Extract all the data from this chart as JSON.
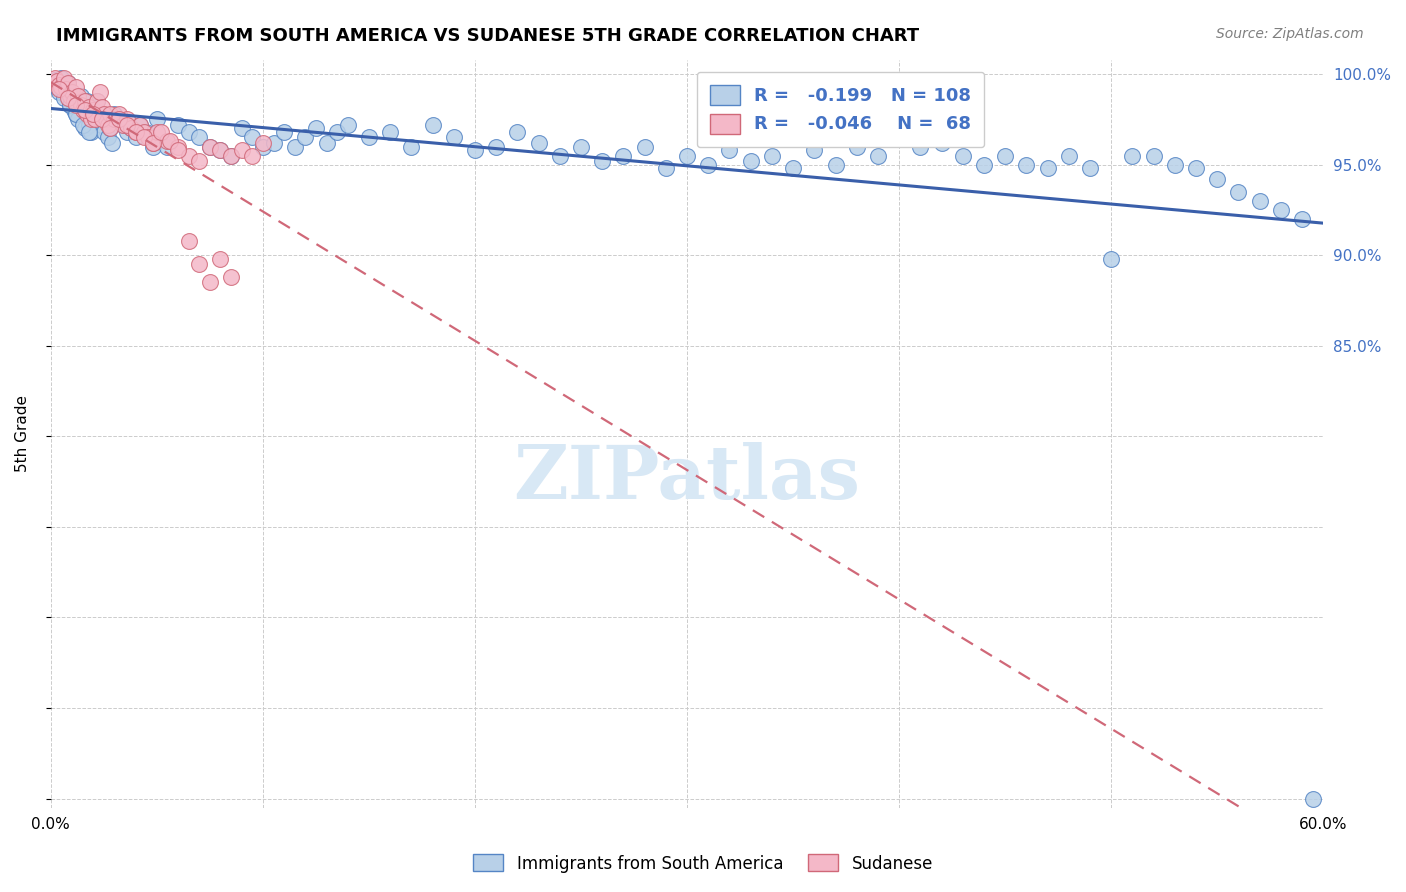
{
  "title": "IMMIGRANTS FROM SOUTH AMERICA VS SUDANESE 5TH GRADE CORRELATION CHART",
  "source": "Source: ZipAtlas.com",
  "ylabel": "5th Grade",
  "legend_R_blue": "-0.199",
  "legend_N_blue": "108",
  "legend_R_pink": "-0.046",
  "legend_N_pink": "68",
  "xlim": [
    0.0,
    0.6
  ],
  "ylim": [
    0.595,
    1.008
  ],
  "blue_scatter_x": [
    0.002,
    0.003,
    0.004,
    0.005,
    0.006,
    0.007,
    0.008,
    0.009,
    0.01,
    0.011,
    0.012,
    0.013,
    0.014,
    0.015,
    0.016,
    0.017,
    0.018,
    0.019,
    0.02,
    0.021,
    0.022,
    0.023,
    0.024,
    0.025,
    0.026,
    0.027,
    0.028,
    0.029,
    0.03,
    0.032,
    0.034,
    0.036,
    0.038,
    0.04,
    0.042,
    0.045,
    0.048,
    0.05,
    0.055,
    0.06,
    0.065,
    0.07,
    0.075,
    0.08,
    0.085,
    0.09,
    0.095,
    0.1,
    0.105,
    0.11,
    0.115,
    0.12,
    0.125,
    0.13,
    0.135,
    0.14,
    0.15,
    0.16,
    0.17,
    0.18,
    0.19,
    0.2,
    0.21,
    0.22,
    0.23,
    0.24,
    0.25,
    0.26,
    0.27,
    0.28,
    0.29,
    0.3,
    0.31,
    0.32,
    0.33,
    0.34,
    0.35,
    0.36,
    0.37,
    0.38,
    0.39,
    0.4,
    0.41,
    0.42,
    0.43,
    0.44,
    0.45,
    0.46,
    0.47,
    0.48,
    0.49,
    0.5,
    0.51,
    0.52,
    0.53,
    0.54,
    0.55,
    0.56,
    0.57,
    0.58,
    0.59,
    0.595,
    0.003,
    0.006,
    0.009,
    0.012,
    0.015,
    0.018
  ],
  "blue_scatter_y": [
    0.997,
    0.993,
    0.99,
    0.998,
    0.992,
    0.988,
    0.995,
    0.983,
    0.985,
    0.98,
    0.978,
    0.975,
    0.988,
    0.982,
    0.97,
    0.985,
    0.972,
    0.968,
    0.98,
    0.975,
    0.985,
    0.978,
    0.972,
    0.968,
    0.975,
    0.965,
    0.97,
    0.962,
    0.978,
    0.975,
    0.972,
    0.968,
    0.97,
    0.965,
    0.972,
    0.968,
    0.96,
    0.975,
    0.96,
    0.972,
    0.968,
    0.965,
    0.96,
    0.958,
    0.955,
    0.97,
    0.965,
    0.96,
    0.962,
    0.968,
    0.96,
    0.965,
    0.97,
    0.962,
    0.968,
    0.972,
    0.965,
    0.968,
    0.96,
    0.972,
    0.965,
    0.958,
    0.96,
    0.968,
    0.962,
    0.955,
    0.96,
    0.952,
    0.955,
    0.96,
    0.948,
    0.955,
    0.95,
    0.958,
    0.952,
    0.955,
    0.948,
    0.958,
    0.95,
    0.96,
    0.955,
    0.968,
    0.96,
    0.962,
    0.955,
    0.95,
    0.955,
    0.95,
    0.948,
    0.955,
    0.948,
    0.898,
    0.955,
    0.955,
    0.95,
    0.948,
    0.942,
    0.935,
    0.93,
    0.925,
    0.92,
    0.6,
    0.993,
    0.987,
    0.983,
    0.978,
    0.972,
    0.968
  ],
  "pink_scatter_x": [
    0.002,
    0.003,
    0.004,
    0.005,
    0.006,
    0.007,
    0.008,
    0.009,
    0.01,
    0.011,
    0.012,
    0.013,
    0.014,
    0.015,
    0.016,
    0.017,
    0.018,
    0.019,
    0.02,
    0.021,
    0.022,
    0.023,
    0.024,
    0.025,
    0.026,
    0.027,
    0.028,
    0.03,
    0.032,
    0.034,
    0.036,
    0.038,
    0.04,
    0.042,
    0.044,
    0.046,
    0.048,
    0.05,
    0.055,
    0.06,
    0.065,
    0.07,
    0.075,
    0.08,
    0.085,
    0.09,
    0.095,
    0.1,
    0.004,
    0.008,
    0.012,
    0.016,
    0.02,
    0.024,
    0.028,
    0.032,
    0.036,
    0.04,
    0.044,
    0.048,
    0.052,
    0.056,
    0.06,
    0.065,
    0.07,
    0.075,
    0.08,
    0.085
  ],
  "pink_scatter_y": [
    0.998,
    0.996,
    0.994,
    0.993,
    0.998,
    0.992,
    0.995,
    0.988,
    0.99,
    0.985,
    0.993,
    0.988,
    0.983,
    0.98,
    0.985,
    0.978,
    0.982,
    0.975,
    0.98,
    0.975,
    0.985,
    0.99,
    0.982,
    0.978,
    0.975,
    0.972,
    0.978,
    0.975,
    0.978,
    0.972,
    0.975,
    0.97,
    0.968,
    0.972,
    0.968,
    0.965,
    0.962,
    0.968,
    0.963,
    0.96,
    0.955,
    0.952,
    0.96,
    0.958,
    0.955,
    0.958,
    0.955,
    0.962,
    0.992,
    0.987,
    0.983,
    0.98,
    0.978,
    0.975,
    0.97,
    0.975,
    0.972,
    0.968,
    0.965,
    0.962,
    0.968,
    0.963,
    0.958,
    0.908,
    0.895,
    0.885,
    0.898,
    0.888
  ],
  "blue_dot_fill": "#b8d0e8",
  "blue_dot_edge": "#5585c5",
  "pink_dot_fill": "#f4b8c8",
  "pink_dot_edge": "#d06878",
  "blue_line_color": "#3a5faa",
  "pink_line_color": "#d06878",
  "grid_color": "#cccccc",
  "watermark_color": "#d8e8f5",
  "y_ticks": [
    0.6,
    0.65,
    0.7,
    0.75,
    0.8,
    0.85,
    0.9,
    0.95,
    1.0
  ],
  "y_tick_labels_right": [
    "",
    "",
    "",
    "",
    "",
    "85.0%",
    "90.0%",
    "95.0%",
    "100.0%"
  ],
  "x_ticks": [
    0.0,
    0.1,
    0.2,
    0.3,
    0.4,
    0.5,
    0.6
  ],
  "x_tick_labels": [
    "0.0%",
    "",
    "",
    "",
    "",
    "",
    "60.0%"
  ]
}
